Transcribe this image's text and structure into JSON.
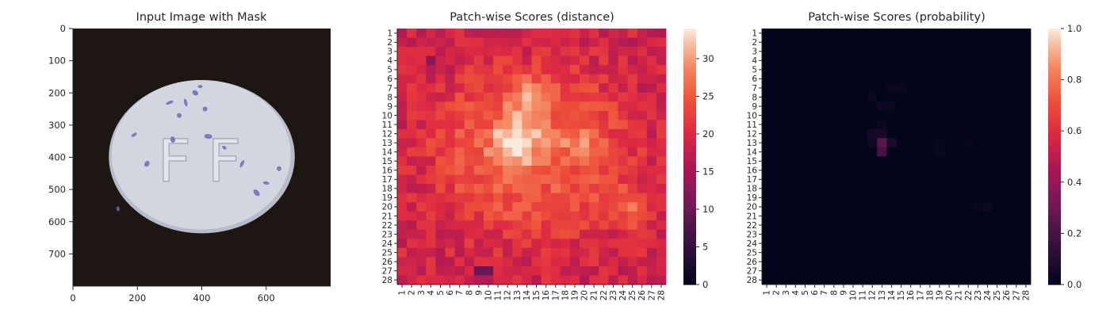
{
  "chart_data": [
    {
      "type": "image",
      "title": "Input Image with Mask",
      "xlim": [
        0,
        800
      ],
      "ylim": [
        800,
        0
      ],
      "xticks": [
        "0",
        "200",
        "400",
        "600"
      ],
      "yticks": [
        "0",
        "100",
        "200",
        "300",
        "400",
        "500",
        "600",
        "700"
      ],
      "xtick_values": [
        0,
        200,
        400,
        600
      ],
      "ytick_values": [
        0,
        100,
        200,
        300,
        400,
        500,
        600,
        700
      ],
      "embossed_text": "FF",
      "colors": {
        "background": "#1e1612",
        "pill": "#d3d6e0",
        "speck": "#6f6ab4"
      }
    },
    {
      "type": "heatmap",
      "title": "Patch-wise Scores (distance)",
      "rows": 28,
      "cols": 28,
      "row_labels": [
        "1",
        "2",
        "3",
        "4",
        "5",
        "6",
        "7",
        "8",
        "9",
        "10",
        "11",
        "12",
        "13",
        "14",
        "15",
        "16",
        "17",
        "18",
        "19",
        "20",
        "21",
        "22",
        "23",
        "24",
        "25",
        "26",
        "27",
        "28"
      ],
      "col_labels": [
        "1",
        "2",
        "3",
        "4",
        "5",
        "6",
        "7",
        "8",
        "9",
        "10",
        "11",
        "12",
        "13",
        "14",
        "15",
        "16",
        "17",
        "18",
        "19",
        "20",
        "21",
        "22",
        "23",
        "24",
        "25",
        "26",
        "27",
        "28"
      ],
      "colorbar": {
        "min": 0,
        "max": 34,
        "ticks": [
          "0",
          "5",
          "10",
          "15",
          "20",
          "25",
          "30"
        ],
        "tick_values": [
          0,
          5,
          10,
          15,
          20,
          25,
          30
        ]
      },
      "colormap": "rocket",
      "description_values": {
        "background": 19,
        "peak": {
          "row": 13,
          "col": 13,
          "value": 34
        },
        "secondary_peak": {
          "row": 20,
          "col": 25,
          "value": 30
        }
      }
    },
    {
      "type": "heatmap",
      "title": "Patch-wise Scores (probability)",
      "rows": 28,
      "cols": 28,
      "row_labels": [
        "1",
        "2",
        "3",
        "4",
        "5",
        "6",
        "7",
        "8",
        "9",
        "10",
        "11",
        "12",
        "13",
        "14",
        "15",
        "16",
        "17",
        "18",
        "19",
        "20",
        "21",
        "22",
        "23",
        "24",
        "25",
        "26",
        "27",
        "28"
      ],
      "col_labels": [
        "1",
        "2",
        "3",
        "4",
        "5",
        "6",
        "7",
        "8",
        "9",
        "10",
        "11",
        "12",
        "13",
        "14",
        "15",
        "16",
        "17",
        "18",
        "19",
        "20",
        "21",
        "22",
        "23",
        "24",
        "25",
        "26",
        "27",
        "28"
      ],
      "colorbar": {
        "min": 0,
        "max": 1,
        "ticks": [
          "0.0",
          "0.2",
          "0.4",
          "0.6",
          "0.8",
          "1.0"
        ],
        "tick_values": [
          0,
          0.2,
          0.4,
          0.6,
          0.8,
          1.0
        ]
      },
      "colormap": "rocket",
      "nonzero_cells": [
        {
          "row": 13,
          "col": 13,
          "value": 0.28
        },
        {
          "row": 14,
          "col": 13,
          "value": 0.22
        },
        {
          "row": 13,
          "col": 14,
          "value": 0.08
        },
        {
          "row": 12,
          "col": 12,
          "value": 0.06
        },
        {
          "row": 12,
          "col": 13,
          "value": 0.07
        },
        {
          "row": 13,
          "col": 12,
          "value": 0.05
        },
        {
          "row": 11,
          "col": 13,
          "value": 0.03
        },
        {
          "row": 9,
          "col": 13,
          "value": 0.04
        },
        {
          "row": 9,
          "col": 14,
          "value": 0.03
        },
        {
          "row": 8,
          "col": 12,
          "value": 0.03
        },
        {
          "row": 7,
          "col": 14,
          "value": 0.025
        },
        {
          "row": 7,
          "col": 15,
          "value": 0.025
        },
        {
          "row": 13,
          "col": 19,
          "value": 0.03
        },
        {
          "row": 14,
          "col": 19,
          "value": 0.025
        },
        {
          "row": 20,
          "col": 24,
          "value": 0.04
        },
        {
          "row": 20,
          "col": 23,
          "value": 0.02
        },
        {
          "row": 13,
          "col": 22,
          "value": 0.02
        }
      ]
    }
  ]
}
